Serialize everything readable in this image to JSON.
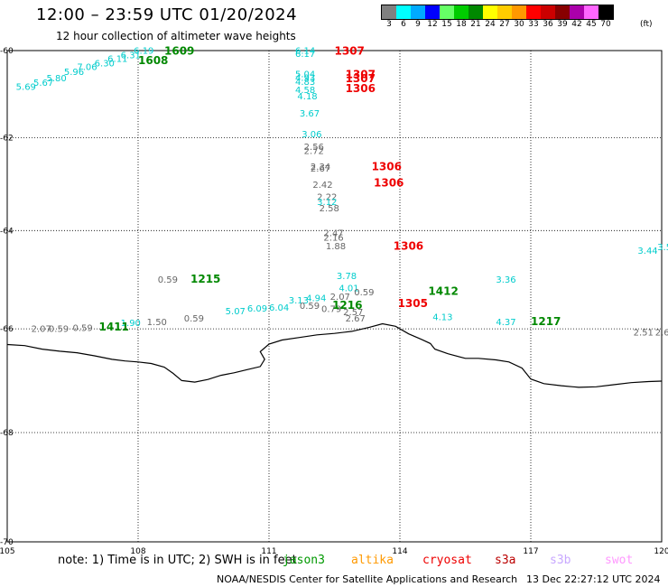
{
  "header": {
    "title": "12:00 – 23:59 UTC 01/20/2024",
    "subtitle": "12 hour collection of altimeter wave heights"
  },
  "legend": {
    "unit": "(ft)",
    "items": [
      {
        "label": "3",
        "color": "#808080"
      },
      {
        "label": "6",
        "color": "#00ffff"
      },
      {
        "label": "9",
        "color": "#00aaff"
      },
      {
        "label": "12",
        "color": "#0000ff"
      },
      {
        "label": "15",
        "color": "#66ff66"
      },
      {
        "label": "18",
        "color": "#00cc00"
      },
      {
        "label": "21",
        "color": "#008800"
      },
      {
        "label": "24",
        "color": "#ffff00"
      },
      {
        "label": "27",
        "color": "#ffcc00"
      },
      {
        "label": "30",
        "color": "#ff9900"
      },
      {
        "label": "33",
        "color": "#ff0000"
      },
      {
        "label": "36",
        "color": "#cc0000"
      },
      {
        "label": "39",
        "color": "#880000"
      },
      {
        "label": "42",
        "color": "#aa00aa"
      },
      {
        "label": "45",
        "color": "#ff66ff"
      },
      {
        "label": "70",
        "color": "#000000"
      }
    ]
  },
  "map": {
    "lon_range": [
      105,
      120
    ],
    "lat_range": [
      -70,
      -60
    ],
    "lon_ticks": [
      "105",
      "108",
      "111",
      "114",
      "117",
      "120"
    ],
    "lat_ticks": [
      "-60",
      "-62",
      "-64",
      "-66",
      "-68",
      "-70"
    ],
    "coastline": [
      [
        105.0,
        -66.31
      ],
      [
        105.4,
        -66.33
      ],
      [
        105.8,
        -66.4
      ],
      [
        106.2,
        -66.44
      ],
      [
        106.6,
        -66.47
      ],
      [
        107.0,
        -66.53
      ],
      [
        107.4,
        -66.6
      ],
      [
        107.7,
        -66.63
      ],
      [
        108.0,
        -66.65
      ],
      [
        108.3,
        -66.68
      ],
      [
        108.6,
        -66.75
      ],
      [
        108.8,
        -66.87
      ],
      [
        109.0,
        -67.01
      ],
      [
        109.3,
        -67.04
      ],
      [
        109.6,
        -66.99
      ],
      [
        109.9,
        -66.91
      ],
      [
        110.2,
        -66.86
      ],
      [
        110.5,
        -66.8
      ],
      [
        110.8,
        -66.74
      ],
      [
        110.9,
        -66.6
      ],
      [
        110.8,
        -66.45
      ],
      [
        111.0,
        -66.3
      ],
      [
        111.3,
        -66.22
      ],
      [
        111.7,
        -66.17
      ],
      [
        112.1,
        -66.12
      ],
      [
        112.5,
        -66.09
      ],
      [
        112.9,
        -66.05
      ],
      [
        113.3,
        -65.97
      ],
      [
        113.6,
        -65.9
      ],
      [
        113.9,
        -65.95
      ],
      [
        114.2,
        -66.1
      ],
      [
        114.5,
        -66.21
      ],
      [
        114.7,
        -66.29
      ],
      [
        114.8,
        -66.4
      ],
      [
        115.1,
        -66.49
      ],
      [
        115.5,
        -66.58
      ],
      [
        115.8,
        -66.58
      ],
      [
        116.2,
        -66.61
      ],
      [
        116.5,
        -66.65
      ],
      [
        116.8,
        -66.77
      ],
      [
        117.0,
        -66.98
      ],
      [
        117.3,
        -67.07
      ],
      [
        117.7,
        -67.11
      ],
      [
        118.1,
        -67.14
      ],
      [
        118.5,
        -67.13
      ],
      [
        118.9,
        -67.09
      ],
      [
        119.3,
        -67.05
      ],
      [
        119.7,
        -67.03
      ],
      [
        120.0,
        -67.02
      ]
    ],
    "annotations": [
      {
        "text": "6.19",
        "lon": 107.9,
        "lat": -60.08,
        "color": "#00cccc",
        "size": 10
      },
      {
        "text": "6.31",
        "lon": 107.6,
        "lat": -60.18,
        "color": "#00cccc",
        "size": 10
      },
      {
        "text": "6.11",
        "lon": 107.3,
        "lat": -60.27,
        "color": "#00cccc",
        "size": 10
      },
      {
        "text": "6.30",
        "lon": 107.0,
        "lat": -60.37,
        "color": "#00cccc",
        "size": 10
      },
      {
        "text": "7.06",
        "lon": 106.6,
        "lat": -60.46,
        "color": "#00cccc",
        "size": 10
      },
      {
        "text": "5.96",
        "lon": 106.3,
        "lat": -60.57,
        "color": "#00cccc",
        "size": 10
      },
      {
        "text": "5.80",
        "lon": 105.9,
        "lat": -60.72,
        "color": "#00cccc",
        "size": 10
      },
      {
        "text": "5.67",
        "lon": 105.6,
        "lat": -60.82,
        "color": "#00cccc",
        "size": 10
      },
      {
        "text": "5.69",
        "lon": 105.2,
        "lat": -60.92,
        "color": "#00cccc",
        "size": 10
      },
      {
        "text": "1609",
        "lon": 108.6,
        "lat": -60.1,
        "color": "#008800",
        "size": 12
      },
      {
        "text": "1608",
        "lon": 108.0,
        "lat": -60.32,
        "color": "#008800",
        "size": 12
      },
      {
        "text": "6.14",
        "lon": 111.6,
        "lat": -60.08,
        "color": "#00cccc",
        "size": 10
      },
      {
        "text": "6.17",
        "lon": 111.6,
        "lat": -60.15,
        "color": "#00cccc",
        "size": 10
      },
      {
        "text": "1307",
        "lon": 112.5,
        "lat": -60.1,
        "color": "#ee0000",
        "size": 12
      },
      {
        "text": "5.04",
        "lon": 111.6,
        "lat": -60.62,
        "color": "#00cccc",
        "size": 10
      },
      {
        "text": "4.93",
        "lon": 111.6,
        "lat": -60.71,
        "color": "#00cccc",
        "size": 10
      },
      {
        "text": "4.83",
        "lon": 111.6,
        "lat": -60.8,
        "color": "#00cccc",
        "size": 10
      },
      {
        "text": "1307",
        "lon": 112.75,
        "lat": -60.65,
        "color": "#ee0000",
        "size": 12
      },
      {
        "text": "1307",
        "lon": 112.75,
        "lat": -60.74,
        "color": "#ee0000",
        "size": 12
      },
      {
        "text": "1306",
        "lon": 112.75,
        "lat": -60.97,
        "color": "#ee0000",
        "size": 12
      },
      {
        "text": "4.58",
        "lon": 111.6,
        "lat": -60.99,
        "color": "#00cccc",
        "size": 10
      },
      {
        "text": "4.18",
        "lon": 111.65,
        "lat": -61.13,
        "color": "#00cccc",
        "size": 10
      },
      {
        "text": "3.67",
        "lon": 111.7,
        "lat": -61.52,
        "color": "#00cccc",
        "size": 10
      },
      {
        "text": "3.06",
        "lon": 111.75,
        "lat": -61.99,
        "color": "#00cccc",
        "size": 10
      },
      {
        "text": "2.56",
        "lon": 111.8,
        "lat": -62.27,
        "color": "#666666",
        "size": 10
      },
      {
        "text": "2.72",
        "lon": 111.8,
        "lat": -62.36,
        "color": "#666666",
        "size": 10
      },
      {
        "text": "2.34",
        "lon": 111.95,
        "lat": -62.7,
        "color": "#666666",
        "size": 10
      },
      {
        "text": "2.67",
        "lon": 111.95,
        "lat": -62.74,
        "color": "#666666",
        "size": 10
      },
      {
        "text": "1306",
        "lon": 113.35,
        "lat": -62.71,
        "color": "#ee0000",
        "size": 12
      },
      {
        "text": "1306",
        "lon": 113.4,
        "lat": -63.06,
        "color": "#ee0000",
        "size": 12
      },
      {
        "text": "2.42",
        "lon": 112.0,
        "lat": -63.09,
        "color": "#666666",
        "size": 10
      },
      {
        "text": "2.22",
        "lon": 112.1,
        "lat": -63.35,
        "color": "#666666",
        "size": 10
      },
      {
        "text": "3.12",
        "lon": 112.1,
        "lat": -63.46,
        "color": "#00cccc",
        "size": 10
      },
      {
        "text": "2.58",
        "lon": 112.15,
        "lat": -63.59,
        "color": "#666666",
        "size": 10
      },
      {
        "text": "2.47",
        "lon": 112.25,
        "lat": -64.12,
        "color": "#666666",
        "size": 10
      },
      {
        "text": "2.16",
        "lon": 112.25,
        "lat": -64.21,
        "color": "#666666",
        "size": 10
      },
      {
        "text": "1.88",
        "lon": 112.3,
        "lat": -64.39,
        "color": "#666666",
        "size": 10
      },
      {
        "text": "1306",
        "lon": 113.85,
        "lat": -64.4,
        "color": "#ee0000",
        "size": 12
      },
      {
        "text": "3.44",
        "lon": 119.45,
        "lat": -64.48,
        "color": "#00cccc",
        "size": 10
      },
      {
        "text": "3.5",
        "lon": 119.9,
        "lat": -64.41,
        "color": "#00cccc",
        "size": 10
      },
      {
        "text": "3.78",
        "lon": 112.55,
        "lat": -65.0,
        "color": "#00cccc",
        "size": 10
      },
      {
        "text": "3.36",
        "lon": 116.2,
        "lat": -65.07,
        "color": "#00cccc",
        "size": 10
      },
      {
        "text": "0.59",
        "lon": 108.45,
        "lat": -65.07,
        "color": "#666666",
        "size": 10
      },
      {
        "text": "1215",
        "lon": 109.2,
        "lat": -65.07,
        "color": "#008800",
        "size": 12
      },
      {
        "text": "4.01",
        "lon": 112.6,
        "lat": -65.25,
        "color": "#00cccc",
        "size": 10
      },
      {
        "text": "1412",
        "lon": 114.65,
        "lat": -65.32,
        "color": "#008800",
        "size": 12
      },
      {
        "text": "0.59",
        "lon": 112.95,
        "lat": -65.33,
        "color": "#666666",
        "size": 10
      },
      {
        "text": "3.13",
        "lon": 111.45,
        "lat": -65.49,
        "color": "#00cccc",
        "size": 10
      },
      {
        "text": "4.94",
        "lon": 111.85,
        "lat": -65.45,
        "color": "#00cccc",
        "size": 10
      },
      {
        "text": "2.07",
        "lon": 112.4,
        "lat": -65.42,
        "color": "#666666",
        "size": 10
      },
      {
        "text": "1305",
        "lon": 113.95,
        "lat": -65.57,
        "color": "#ee0000",
        "size": 12
      },
      {
        "text": "0.59",
        "lon": 111.7,
        "lat": -65.6,
        "color": "#666666",
        "size": 10
      },
      {
        "text": "0.79",
        "lon": 112.2,
        "lat": -65.67,
        "color": "#666666",
        "size": 10
      },
      {
        "text": "1216",
        "lon": 112.45,
        "lat": -65.6,
        "color": "#008800",
        "size": 12
      },
      {
        "text": "5.07",
        "lon": 110.0,
        "lat": -65.71,
        "color": "#00cccc",
        "size": 10
      },
      {
        "text": "6.09",
        "lon": 110.5,
        "lat": -65.66,
        "color": "#00cccc",
        "size": 10
      },
      {
        "text": "6.04",
        "lon": 111.0,
        "lat": -65.64,
        "color": "#00cccc",
        "size": 10
      },
      {
        "text": "2.57",
        "lon": 112.7,
        "lat": -65.73,
        "color": "#666666",
        "size": 10
      },
      {
        "text": "2.67",
        "lon": 112.75,
        "lat": -65.85,
        "color": "#666666",
        "size": 10
      },
      {
        "text": "4.13",
        "lon": 114.75,
        "lat": -65.83,
        "color": "#00cccc",
        "size": 10
      },
      {
        "text": "0.59",
        "lon": 109.05,
        "lat": -65.85,
        "color": "#666666",
        "size": 10
      },
      {
        "text": "4.37",
        "lon": 116.2,
        "lat": -65.93,
        "color": "#00cccc",
        "size": 10
      },
      {
        "text": "1217",
        "lon": 117.0,
        "lat": -65.93,
        "color": "#008800",
        "size": 12
      },
      {
        "text": "1.50",
        "lon": 108.2,
        "lat": -65.93,
        "color": "#666666",
        "size": 10
      },
      {
        "text": "1.90",
        "lon": 107.6,
        "lat": -65.94,
        "color": "#00cccc",
        "size": 10
      },
      {
        "text": "1411",
        "lon": 107.1,
        "lat": -66.03,
        "color": "#008800",
        "size": 12
      },
      {
        "text": "2.07",
        "lon": 105.55,
        "lat": -66.06,
        "color": "#666666",
        "size": 10
      },
      {
        "text": "0.59",
        "lon": 105.95,
        "lat": -66.06,
        "color": "#666666",
        "size": 10
      },
      {
        "text": "0.59",
        "lon": 106.5,
        "lat": -66.04,
        "color": "#666666",
        "size": 10
      },
      {
        "text": "2.51",
        "lon": 119.35,
        "lat": -66.13,
        "color": "#666666",
        "size": 10
      },
      {
        "text": "2.6",
        "lon": 119.85,
        "lat": -66.13,
        "color": "#666666",
        "size": 10
      }
    ]
  },
  "footer": {
    "note": "note:  1) Time is in UTC;  2) SWH is in feet",
    "satellites": [
      {
        "name": "jason3",
        "color": "#009900"
      },
      {
        "name": "altika",
        "color": "#ff9900"
      },
      {
        "name": "cryosat",
        "color": "#ee0000"
      },
      {
        "name": "s3a",
        "color": "#bb0000"
      },
      {
        "name": "s3b",
        "color": "#c8a8ff"
      },
      {
        "name": "swot",
        "color": "#ff99ff"
      }
    ],
    "credit": "NOAA/NESDIS Center for Satellite Applications and Research",
    "timestamp": "13 Dec 22:27:12 UTC 2024"
  }
}
